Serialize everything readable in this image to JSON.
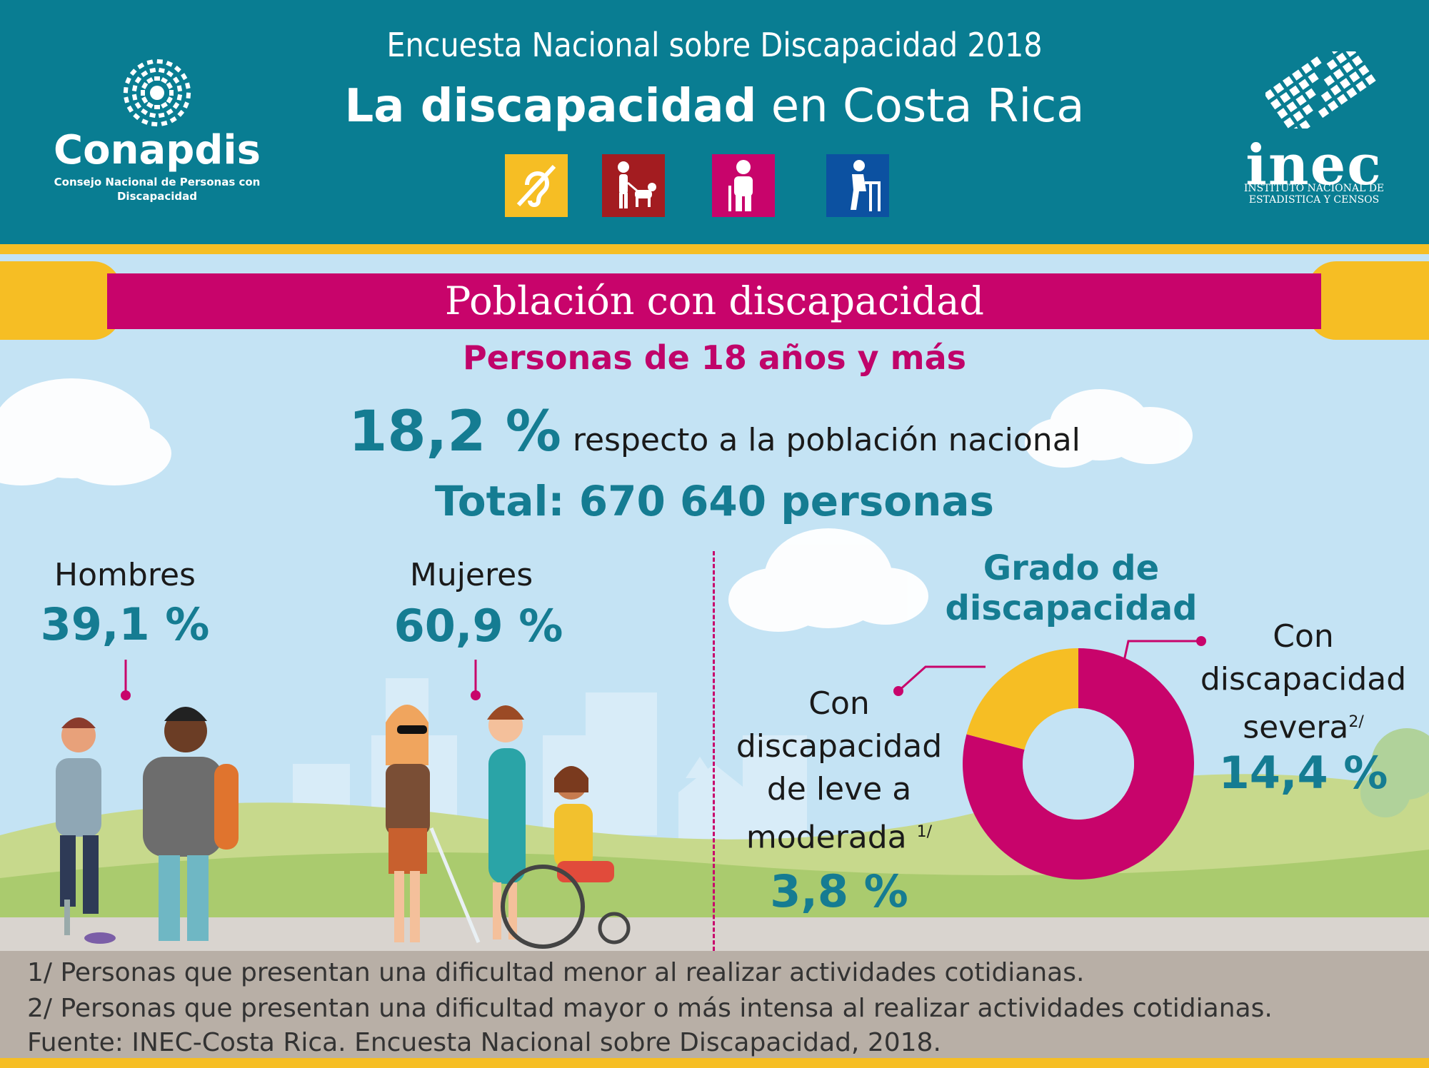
{
  "header": {
    "survey_title": "Encuesta Nacional sobre Discapacidad 2018",
    "title_bold": "La discapacidad",
    "title_rest": " en Costa Rica",
    "icons": [
      "deaf-icon",
      "guide-dog-icon",
      "elderly-person-icon",
      "walker-icon"
    ]
  },
  "logos": {
    "conapdis_name": "Conapdis",
    "conapdis_sub": "Consejo Nacional de Personas con Discapacidad",
    "inec_name": "inec",
    "inec_sub_1": "INSTITUTO NACIONAL DE",
    "inec_sub_2": "ESTADISTICA Y CENSOS"
  },
  "colors": {
    "teal": "#097d92",
    "magenta": "#c8046b",
    "yellow": "#f6be24",
    "sky": "#c4e3f4",
    "value_teal": "#157c92"
  },
  "banner_title": "Población con discapacidad",
  "subtitle": "Personas de 18 años y más",
  "national_pct": "18,2 %",
  "national_pct_label": "respecto a la población nacional",
  "total": "Total: 670 640 personas",
  "gender": {
    "men_label": "Hombres",
    "men_pct": "39,1 %",
    "women_label": "Mujeres",
    "women_pct": "60,9 %"
  },
  "chart_data": {
    "type": "pie",
    "title": "Grado de discapacidad",
    "series": [
      {
        "name": "Con discapacidad de leve a moderada",
        "value": 3.8,
        "color": "#f6be24"
      },
      {
        "name": "Con discapacidad severa",
        "value": 14.4,
        "color": "#c8046b"
      }
    ],
    "labels": {
      "mild_1": "Con",
      "mild_2": "discapacidad",
      "mild_3": "de leve a",
      "mild_4": "moderada",
      "mild_note": "1/",
      "mild_pct": "3,8 %",
      "severe_1": "Con",
      "severe_2": "discapacidad",
      "severe_3": "severa",
      "severe_note": "2/",
      "severe_pct": "14,4 %"
    }
  },
  "footer": {
    "note1": "1/ Personas que presentan una dificultad menor al realizar actividades cotidianas.",
    "note2": "2/ Personas que presentan una dificultad mayor o más intensa al realizar actividades cotidianas.",
    "source": "Fuente: INEC-Costa Rica. Encuesta Nacional sobre Discapacidad, 2018."
  }
}
